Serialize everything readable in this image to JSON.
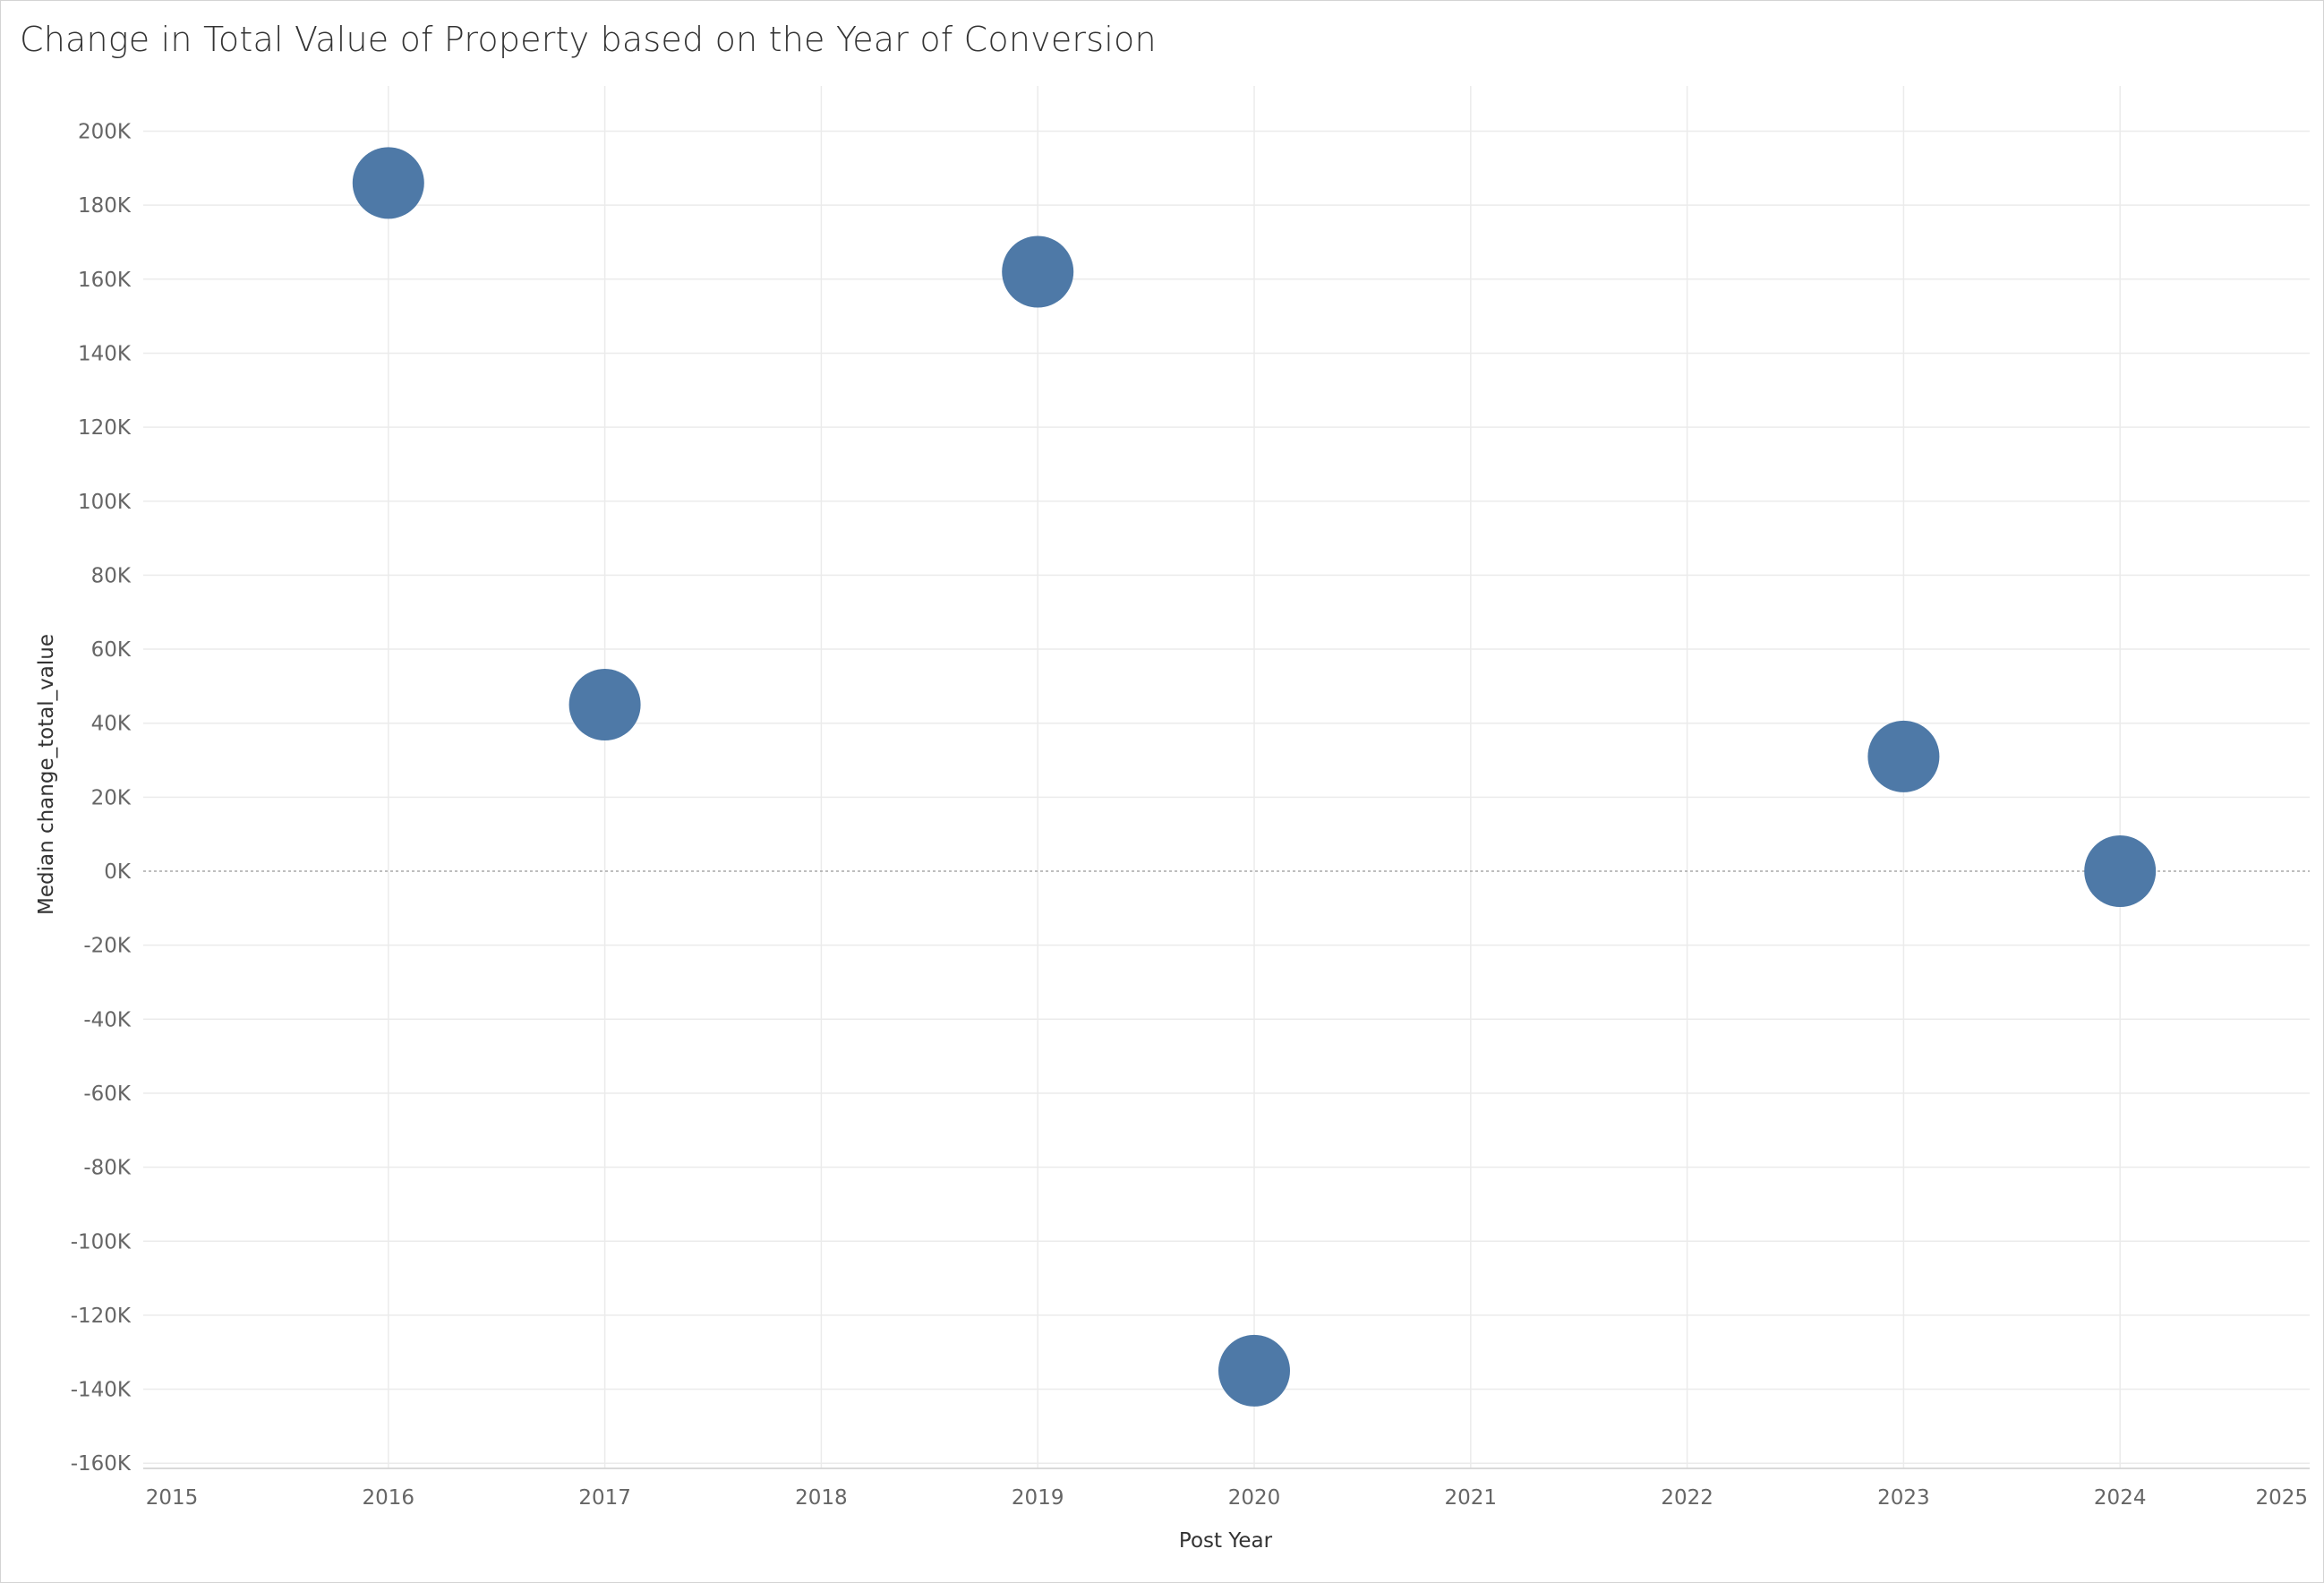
{
  "chart_data": {
    "type": "scatter",
    "title": "Change in Total Value of Property based on the Year of Conversion",
    "xlabel": "Post Year",
    "ylabel": "Median change_total_value",
    "xlim": [
      2015,
      2025
    ],
    "ylim": [
      -165000,
      212000
    ],
    "x_ticks": [
      2015,
      2016,
      2017,
      2018,
      2019,
      2020,
      2021,
      2022,
      2023,
      2024,
      2025
    ],
    "x_tick_labels": [
      "2015",
      "2016",
      "2017",
      "2018",
      "2019",
      "2020",
      "2021",
      "2022",
      "2023",
      "2024",
      "2025"
    ],
    "y_ticks": [
      200000,
      180000,
      160000,
      140000,
      120000,
      100000,
      80000,
      60000,
      40000,
      20000,
      0,
      -20000,
      -40000,
      -60000,
      -80000,
      -100000,
      -120000,
      -140000,
      -160000
    ],
    "y_tick_labels": [
      "200K",
      "180K",
      "160K",
      "140K",
      "120K",
      "100K",
      "80K",
      "60K",
      "40K",
      "20K",
      "0K",
      "-20K",
      "-40K",
      "-60K",
      "-80K",
      "-100K",
      "-120K",
      "-140K",
      "-160K"
    ],
    "points": [
      {
        "x": 2016,
        "y": 186000
      },
      {
        "x": 2017,
        "y": 45000
      },
      {
        "x": 2019,
        "y": 162000
      },
      {
        "x": 2020,
        "y": -135000
      },
      {
        "x": 2023,
        "y": 31000
      },
      {
        "x": 2024,
        "y": 0
      }
    ],
    "grid": true,
    "zero_line": true,
    "colors": {
      "marker": "#4e79a7",
      "grid": "#ebebeb",
      "zero_line": "#a8a8a8"
    }
  }
}
